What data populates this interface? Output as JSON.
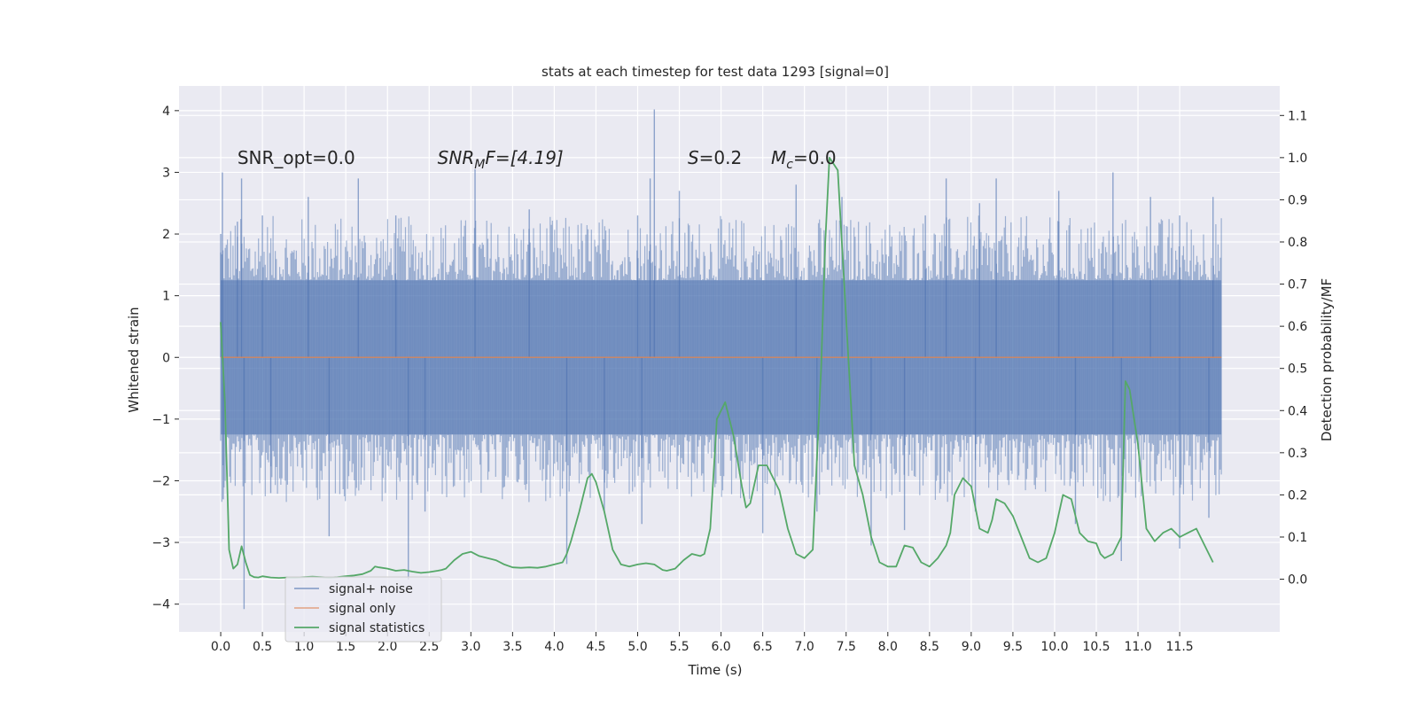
{
  "chart_data": {
    "type": "line",
    "title": "stats at each timestep for test data 1293 [signal=0]",
    "xlabel": "Time (s)",
    "ylabel": "Whitened strain",
    "y2label": "Detection probability/MF",
    "xlim": [
      -0.5,
      12.7
    ],
    "ylim": [
      -4.45,
      4.4
    ],
    "y2lim": [
      -0.125,
      1.17
    ],
    "x_ticks": [
      0.0,
      0.5,
      1.0,
      1.5,
      2.0,
      2.5,
      3.0,
      3.5,
      4.0,
      4.5,
      5.0,
      5.5,
      6.0,
      6.5,
      7.0,
      7.5,
      8.0,
      8.5,
      9.0,
      9.5,
      10.0,
      10.5,
      11.0,
      11.5
    ],
    "x_tick_labels": [
      "0.0",
      "0.5",
      "1.0",
      "1.5",
      "2.0",
      "2.5",
      "3.0",
      "3.5",
      "4.0",
      "4.5",
      "5.0",
      "5.5",
      "6.0",
      "6.5",
      "7.0",
      "7.5",
      "8.0",
      "8.5",
      "9.0",
      "9.5",
      "10.0",
      "10.5",
      "11.0",
      "11.5"
    ],
    "y_ticks": [
      -4,
      -3,
      -2,
      -1,
      0,
      1,
      2,
      3,
      4
    ],
    "y_tick_labels": [
      "−4",
      "−3",
      "−2",
      "−1",
      "0",
      "1",
      "2",
      "3",
      "4"
    ],
    "y2_ticks": [
      0.0,
      0.1,
      0.2,
      0.3,
      0.4,
      0.5,
      0.6,
      0.7,
      0.8,
      0.9,
      1.0,
      1.1
    ],
    "y2_tick_labels": [
      "0.0",
      "0.1",
      "0.2",
      "0.3",
      "0.4",
      "0.5",
      "0.6",
      "0.7",
      "0.8",
      "0.9",
      "1.0",
      "1.1"
    ],
    "grid": true,
    "legend_position": "lower-left",
    "annotations": [
      {
        "text": "SNR_opt=0.0",
        "x": 0.2
      },
      {
        "text": "SNR",
        "sub": "M",
        "suffix": "F=[4.19]",
        "italic": true,
        "x": 2.6
      },
      {
        "text": "S",
        "suffix": "=0.2",
        "italic": true,
        "x": 5.6
      },
      {
        "text": "M",
        "sub": "c",
        "suffix": "=0.0",
        "italic": true,
        "x": 6.6
      }
    ],
    "series": [
      {
        "name": "signal+ noise",
        "color": "#4c72b0",
        "opacity": 0.5,
        "band": [
          -1.25,
          1.25
        ],
        "xrange": [
          0.0,
          12.0
        ],
        "peaks": [
          {
            "x": 0.0,
            "y": 2.0
          },
          {
            "x": 0.02,
            "y": 3.0
          },
          {
            "x": 0.2,
            "y": 2.2
          },
          {
            "x": 0.25,
            "y": 2.9
          },
          {
            "x": 0.5,
            "y": 2.3
          },
          {
            "x": 1.05,
            "y": 2.6
          },
          {
            "x": 1.65,
            "y": 2.9
          },
          {
            "x": 2.1,
            "y": 2.3
          },
          {
            "x": 3.05,
            "y": 3.05
          },
          {
            "x": 3.7,
            "y": 2.4
          },
          {
            "x": 5.0,
            "y": 2.3
          },
          {
            "x": 5.15,
            "y": 2.9
          },
          {
            "x": 5.2,
            "y": 4.02
          },
          {
            "x": 5.5,
            "y": 2.7
          },
          {
            "x": 6.9,
            "y": 2.8
          },
          {
            "x": 7.45,
            "y": 2.6
          },
          {
            "x": 8.45,
            "y": 2.3
          },
          {
            "x": 8.7,
            "y": 2.9
          },
          {
            "x": 9.1,
            "y": 2.5
          },
          {
            "x": 9.3,
            "y": 2.9
          },
          {
            "x": 10.05,
            "y": 2.7
          },
          {
            "x": 10.7,
            "y": 3.0
          },
          {
            "x": 11.15,
            "y": 2.6
          },
          {
            "x": 11.5,
            "y": 2.3
          },
          {
            "x": 11.9,
            "y": 2.6
          }
        ],
        "troughs": [
          {
            "x": 0.28,
            "y": -4.08
          },
          {
            "x": 0.03,
            "y": -2.3
          },
          {
            "x": 0.6,
            "y": -2.2
          },
          {
            "x": 1.3,
            "y": -2.9
          },
          {
            "x": 2.25,
            "y": -3.6
          },
          {
            "x": 2.45,
            "y": -2.5
          },
          {
            "x": 4.15,
            "y": -3.35
          },
          {
            "x": 4.6,
            "y": -2.5
          },
          {
            "x": 5.05,
            "y": -2.7
          },
          {
            "x": 6.5,
            "y": -2.85
          },
          {
            "x": 7.15,
            "y": -2.5
          },
          {
            "x": 7.8,
            "y": -3.05
          },
          {
            "x": 8.2,
            "y": -2.8
          },
          {
            "x": 9.05,
            "y": -2.5
          },
          {
            "x": 10.25,
            "y": -2.7
          },
          {
            "x": 10.8,
            "y": -3.3
          },
          {
            "x": 11.5,
            "y": -3.1
          },
          {
            "x": 11.85,
            "y": -2.6
          }
        ]
      },
      {
        "name": "signal only",
        "color": "#dd8452",
        "opacity": 0.5,
        "x": [
          0.0,
          12.0
        ],
        "values": [
          0.0,
          0.0
        ]
      },
      {
        "name": "signal statistics",
        "color": "#55a868",
        "axis": "right",
        "x": [
          0.0,
          0.05,
          0.1,
          0.15,
          0.2,
          0.25,
          0.3,
          0.35,
          0.4,
          0.45,
          0.5,
          0.6,
          0.7,
          0.8,
          0.9,
          1.0,
          1.1,
          1.2,
          1.3,
          1.4,
          1.5,
          1.6,
          1.7,
          1.8,
          1.85,
          1.9,
          2.0,
          2.1,
          2.2,
          2.3,
          2.4,
          2.5,
          2.6,
          2.65,
          2.7,
          2.8,
          2.9,
          3.0,
          3.1,
          3.2,
          3.3,
          3.4,
          3.5,
          3.6,
          3.7,
          3.8,
          3.9,
          4.0,
          4.1,
          4.15,
          4.2,
          4.3,
          4.4,
          4.45,
          4.5,
          4.6,
          4.7,
          4.8,
          4.9,
          5.0,
          5.1,
          5.2,
          5.3,
          5.35,
          5.45,
          5.55,
          5.65,
          5.75,
          5.8,
          5.87,
          5.95,
          6.05,
          6.15,
          6.25,
          6.3,
          6.35,
          6.45,
          6.55,
          6.7,
          6.8,
          6.9,
          7.0,
          7.1,
          7.2,
          7.25,
          7.3,
          7.4,
          7.5,
          7.6,
          7.7,
          7.8,
          7.9,
          8.0,
          8.1,
          8.2,
          8.3,
          8.4,
          8.5,
          8.6,
          8.7,
          8.75,
          8.8,
          8.9,
          9.0,
          9.1,
          9.2,
          9.25,
          9.3,
          9.4,
          9.5,
          9.6,
          9.7,
          9.8,
          9.9,
          10.0,
          10.1,
          10.2,
          10.3,
          10.4,
          10.5,
          10.55,
          10.6,
          10.7,
          10.8,
          10.85,
          10.9,
          11.0,
          11.1,
          11.2,
          11.3,
          11.4,
          11.5,
          11.6,
          11.7,
          11.8,
          11.9
        ],
        "values": [
          0.61,
          0.42,
          0.07,
          0.025,
          0.035,
          0.078,
          0.04,
          0.01,
          0.005,
          0.004,
          0.007,
          0.004,
          0.003,
          0.004,
          0.004,
          0.005,
          0.006,
          0.005,
          0.004,
          0.005,
          0.007,
          0.009,
          0.012,
          0.02,
          0.03,
          0.028,
          0.025,
          0.02,
          0.022,
          0.018,
          0.015,
          0.017,
          0.02,
          0.022,
          0.025,
          0.045,
          0.06,
          0.065,
          0.055,
          0.05,
          0.045,
          0.035,
          0.028,
          0.027,
          0.028,
          0.027,
          0.03,
          0.035,
          0.04,
          0.06,
          0.09,
          0.16,
          0.24,
          0.25,
          0.23,
          0.16,
          0.07,
          0.035,
          0.03,
          0.035,
          0.038,
          0.035,
          0.022,
          0.02,
          0.025,
          0.045,
          0.06,
          0.055,
          0.06,
          0.12,
          0.38,
          0.42,
          0.34,
          0.22,
          0.17,
          0.18,
          0.27,
          0.27,
          0.21,
          0.12,
          0.06,
          0.05,
          0.07,
          0.5,
          0.8,
          1.0,
          0.97,
          0.62,
          0.27,
          0.2,
          0.1,
          0.04,
          0.03,
          0.03,
          0.08,
          0.075,
          0.04,
          0.03,
          0.05,
          0.08,
          0.11,
          0.2,
          0.24,
          0.22,
          0.12,
          0.11,
          0.14,
          0.19,
          0.18,
          0.15,
          0.1,
          0.05,
          0.04,
          0.05,
          0.11,
          0.2,
          0.19,
          0.11,
          0.09,
          0.085,
          0.06,
          0.05,
          0.06,
          0.1,
          0.47,
          0.45,
          0.32,
          0.12,
          0.09,
          0.11,
          0.12,
          0.1,
          0.11,
          0.12,
          0.08,
          0.04
        ]
      }
    ]
  }
}
